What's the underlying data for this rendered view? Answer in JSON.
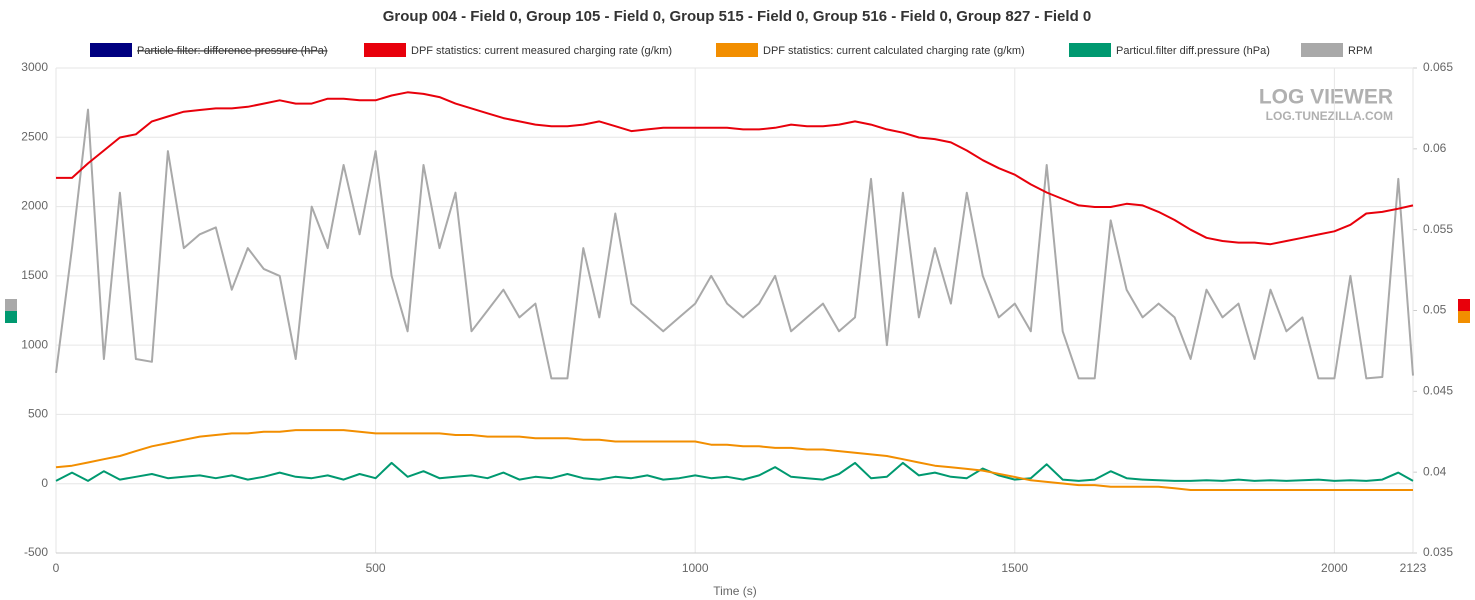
{
  "chart_data": {
    "type": "line",
    "title": "Group 004 - Field 0, Group 105 - Field 0, Group 515 - Field 0, Group 516 - Field 0, Group 827 - Field 0",
    "x_label": "Time (s)",
    "watermark": "LOG VIEWER",
    "watermark_url": "LOG.TUNEZILLA.COM",
    "x": [
      0,
      25,
      50,
      75,
      100,
      125,
      150,
      175,
      200,
      225,
      250,
      275,
      300,
      325,
      350,
      375,
      400,
      425,
      450,
      475,
      500,
      525,
      550,
      575,
      600,
      625,
      650,
      675,
      700,
      725,
      750,
      775,
      800,
      825,
      850,
      875,
      900,
      925,
      950,
      975,
      1000,
      1025,
      1050,
      1075,
      1100,
      1125,
      1150,
      1175,
      1200,
      1225,
      1250,
      1275,
      1300,
      1325,
      1350,
      1375,
      1400,
      1425,
      1450,
      1475,
      1500,
      1525,
      1550,
      1575,
      1600,
      1625,
      1650,
      1675,
      1700,
      1725,
      1750,
      1775,
      1800,
      1825,
      1850,
      1875,
      1900,
      1925,
      1950,
      1975,
      2000,
      2025,
      2050,
      2075,
      2100,
      2123
    ],
    "xlim": [
      0,
      2123
    ],
    "xticks": [
      0,
      500,
      1000,
      1500,
      2000,
      2123
    ],
    "ylim": [
      -500,
      3000
    ],
    "yticks": [
      -500,
      0,
      500,
      1000,
      1500,
      2000,
      2500,
      3000
    ],
    "y2lim": [
      0.035,
      0.065
    ],
    "y2ticks": [
      0.035,
      0.04,
      0.045,
      0.05,
      0.055,
      0.06,
      0.065
    ],
    "grid": true,
    "legend": "top",
    "series": [
      {
        "name": "Particle filter: difference pressure (hPa)",
        "color": "#000080",
        "visible": false
      },
      {
        "name": "DPF statistics: current measured charging rate (g/km)",
        "color": "#e8000b",
        "axis": "y2",
        "values": [
          0.0582,
          0.0582,
          0.0591,
          0.0599,
          0.0607,
          0.0609,
          0.0617,
          0.062,
          0.0623,
          0.0624,
          0.0625,
          0.0625,
          0.0626,
          0.0628,
          0.063,
          0.0628,
          0.0628,
          0.0631,
          0.0631,
          0.063,
          0.063,
          0.0633,
          0.0635,
          0.0634,
          0.0632,
          0.0628,
          0.0625,
          0.0622,
          0.0619,
          0.0617,
          0.0615,
          0.0614,
          0.0614,
          0.0615,
          0.0617,
          0.0614,
          0.0611,
          0.0612,
          0.0613,
          0.0613,
          0.0613,
          0.0613,
          0.0613,
          0.0612,
          0.0612,
          0.0613,
          0.0615,
          0.0614,
          0.0614,
          0.0615,
          0.0617,
          0.0615,
          0.0612,
          0.061,
          0.0607,
          0.0606,
          0.0604,
          0.0599,
          0.0593,
          0.0588,
          0.0584,
          0.0578,
          0.0573,
          0.0569,
          0.0565,
          0.0564,
          0.0564,
          0.0566,
          0.0565,
          0.0561,
          0.0556,
          0.055,
          0.0545,
          0.0543,
          0.0542,
          0.0542,
          0.0541,
          0.0543,
          0.0545,
          0.0547,
          0.0549,
          0.0553,
          0.056,
          0.0561,
          0.0563,
          0.0565
        ]
      },
      {
        "name": "DPF statistics: current calculated charging rate (g/km)",
        "color": "#f28e00",
        "axis": "y2",
        "values": [
          0.0403,
          0.0404,
          0.0406,
          0.0408,
          0.041,
          0.0413,
          0.0416,
          0.0418,
          0.042,
          0.0422,
          0.0423,
          0.0424,
          0.0424,
          0.0425,
          0.0425,
          0.0426,
          0.0426,
          0.0426,
          0.0426,
          0.0425,
          0.0424,
          0.0424,
          0.0424,
          0.0424,
          0.0424,
          0.0423,
          0.0423,
          0.0422,
          0.0422,
          0.0422,
          0.0421,
          0.0421,
          0.0421,
          0.042,
          0.042,
          0.0419,
          0.0419,
          0.0419,
          0.0419,
          0.0419,
          0.0419,
          0.0417,
          0.0417,
          0.0416,
          0.0416,
          0.0415,
          0.0415,
          0.0414,
          0.0414,
          0.0413,
          0.0412,
          0.0411,
          0.041,
          0.0408,
          0.0406,
          0.0404,
          0.0403,
          0.0402,
          0.0401,
          0.0399,
          0.0397,
          0.0395,
          0.0394,
          0.0393,
          0.0392,
          0.0392,
          0.0391,
          0.0391,
          0.0391,
          0.0391,
          0.039,
          0.0389,
          0.0389,
          0.0389,
          0.0389,
          0.0389,
          0.0389,
          0.0389,
          0.0389,
          0.0389,
          0.0389,
          0.0389,
          0.0389,
          0.0389,
          0.0389,
          0.0389
        ]
      },
      {
        "name": "Particul.filter diff.pressure (hPa)",
        "color": "#009970",
        "values": [
          20,
          80,
          20,
          90,
          30,
          50,
          70,
          40,
          50,
          60,
          40,
          60,
          30,
          50,
          80,
          50,
          40,
          60,
          30,
          70,
          40,
          150,
          50,
          90,
          40,
          50,
          60,
          40,
          80,
          30,
          50,
          40,
          70,
          40,
          30,
          50,
          40,
          60,
          30,
          40,
          60,
          40,
          50,
          30,
          60,
          120,
          50,
          40,
          30,
          70,
          150,
          40,
          50,
          150,
          60,
          80,
          50,
          40,
          110,
          60,
          30,
          40,
          140,
          30,
          20,
          30,
          90,
          40,
          30,
          25,
          20,
          20,
          25,
          20,
          30,
          20,
          25,
          20,
          25,
          30,
          20,
          25,
          20,
          30,
          80,
          20
        ]
      },
      {
        "name": "RPM",
        "color": "#a9a9a9",
        "values": [
          800,
          1700,
          2700,
          900,
          2100,
          900,
          880,
          2400,
          1700,
          1800,
          1850,
          1400,
          1700,
          1550,
          1500,
          900,
          2000,
          1700,
          2300,
          1800,
          2400,
          1500,
          1100,
          2300,
          1700,
          2100,
          1100,
          1250,
          1400,
          1200,
          1300,
          760,
          760,
          1700,
          1200,
          1950,
          1300,
          1200,
          1100,
          1200,
          1300,
          1500,
          1300,
          1200,
          1300,
          1500,
          1100,
          1200,
          1300,
          1100,
          1200,
          2200,
          1000,
          2100,
          1200,
          1700,
          1300,
          2100,
          1500,
          1200,
          1300,
          1100,
          2300,
          1100,
          760,
          760,
          1900,
          1400,
          1200,
          1300,
          1200,
          900,
          1400,
          1200,
          1300,
          900,
          1400,
          1100,
          1200,
          760,
          760,
          1500,
          760,
          770,
          2200,
          780
        ]
      }
    ]
  }
}
